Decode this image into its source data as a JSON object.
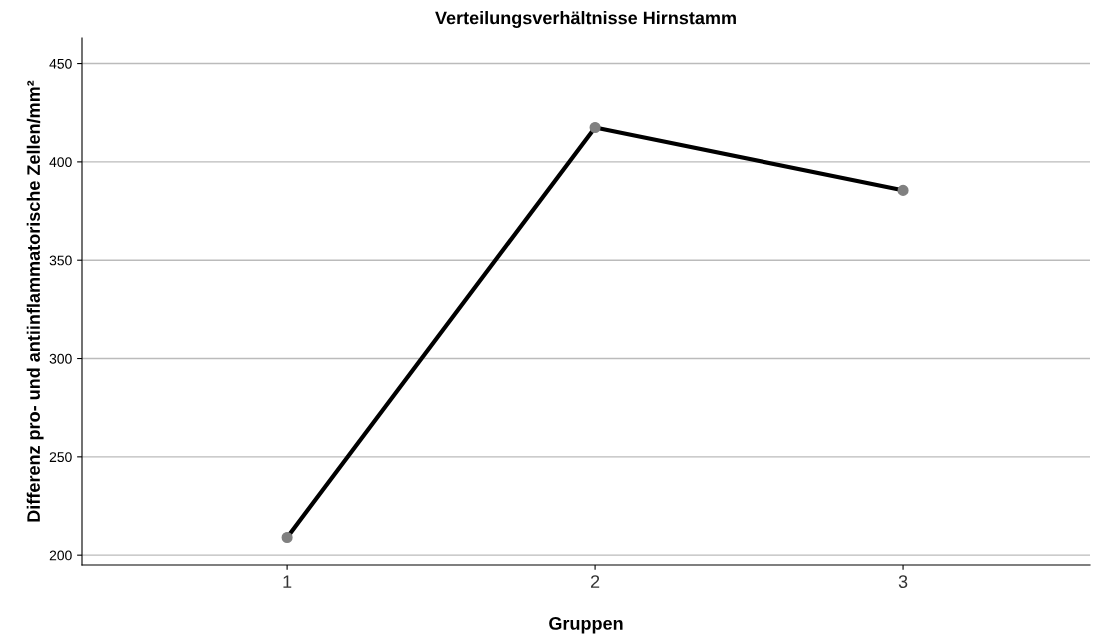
{
  "chart_data": {
    "type": "line",
    "title": "Verteilungsverhältnisse Hirnstamm",
    "xlabel": "Gruppen",
    "ylabel": "Differenz pro- und antiinflammatorische Zellen/mm²",
    "categories": [
      "1",
      "2",
      "3"
    ],
    "series": [
      {
        "color": "#000000",
        "values": [
          209,
          417.5,
          385.5
        ]
      }
    ],
    "ylim": [
      195,
      463
    ],
    "yticks": [
      200,
      250,
      300,
      350,
      400,
      450
    ],
    "grid": "y",
    "marker": "circle",
    "line_style": "solid",
    "legend": false
  }
}
